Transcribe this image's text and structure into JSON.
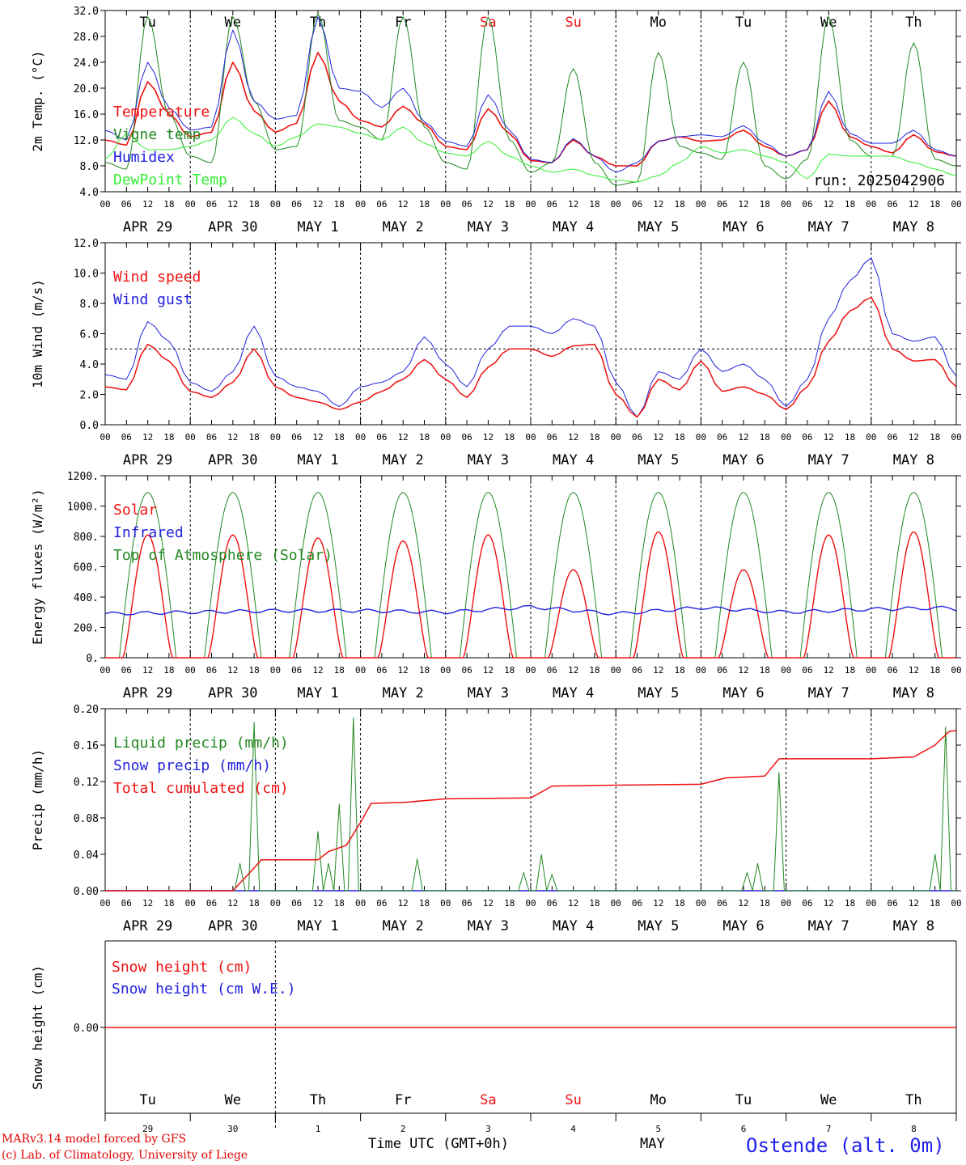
{
  "chart_data": [
    {
      "type": "line",
      "panel": "temperature",
      "ylabel": "2m Temp. (°C)",
      "ylim": [
        4.0,
        32.0
      ],
      "yticks": [
        "4.0",
        "8.0",
        "12.0",
        "16.0",
        "20.0",
        "24.0",
        "28.0",
        "32.0"
      ],
      "annotation": "run: 2025042906",
      "hours": [
        0,
        6,
        12,
        18,
        24,
        30,
        36,
        42,
        48,
        54,
        60,
        66,
        72,
        78,
        84,
        90,
        96,
        102,
        108,
        114,
        120,
        126,
        132,
        138,
        144,
        150,
        156,
        162,
        168,
        174,
        180,
        186,
        192,
        198,
        204,
        210,
        216,
        222,
        228,
        234,
        240
      ],
      "series": [
        {
          "name": "Temperature",
          "color": "#ee1111",
          "values": [
            12.0,
            11.2,
            21.0,
            16.0,
            12.5,
            13.2,
            24.0,
            16.5,
            13.2,
            14.6,
            25.5,
            18.0,
            15.0,
            14.0,
            17.2,
            14.5,
            11.0,
            10.5,
            16.8,
            13.0,
            8.8,
            8.5,
            12.0,
            9.5,
            8.0,
            8.0,
            11.8,
            12.5,
            11.8,
            12.0,
            13.5,
            11.0,
            9.5,
            10.5,
            18.0,
            12.5,
            11.0,
            10.0,
            12.8,
            10.2,
            9.5
          ]
        },
        {
          "name": "Vigne temp",
          "color": "#228822",
          "values": [
            8.5,
            7.5,
            31.0,
            16.0,
            9.5,
            8.5,
            31.0,
            18.0,
            10.5,
            11.0,
            31.5,
            15.0,
            14.0,
            12.0,
            31.0,
            14.0,
            8.5,
            7.5,
            31.0,
            12.0,
            7.0,
            8.5,
            23.0,
            8.5,
            5.0,
            5.5,
            25.5,
            11.0,
            10.0,
            9.0,
            24.0,
            8.0,
            6.0,
            9.0,
            31.0,
            12.0,
            9.5,
            9.5,
            27.0,
            9.0,
            8.0
          ]
        },
        {
          "name": "Humidex",
          "color": "#2222dd",
          "values": [
            13.5,
            12.0,
            24.0,
            17.0,
            13.5,
            14.0,
            29.0,
            18.0,
            15.2,
            15.8,
            31.0,
            20.0,
            19.5,
            17.0,
            20.0,
            14.8,
            11.8,
            11.0,
            19.0,
            13.5,
            9.0,
            8.5,
            12.2,
            9.5,
            7.0,
            8.5,
            11.8,
            12.5,
            12.8,
            12.5,
            14.2,
            11.5,
            9.5,
            10.5,
            19.5,
            13.0,
            11.5,
            11.5,
            13.5,
            10.5,
            9.5
          ]
        },
        {
          "name": "DewPoint Temp",
          "color": "#33ee33",
          "values": [
            9.0,
            13.0,
            10.5,
            10.5,
            11.0,
            12.0,
            15.5,
            13.0,
            11.0,
            12.5,
            14.5,
            14.0,
            13.0,
            12.0,
            14.0,
            11.5,
            10.0,
            9.5,
            11.8,
            9.5,
            8.0,
            7.0,
            7.5,
            6.5,
            5.8,
            5.5,
            6.5,
            8.5,
            11.0,
            10.0,
            10.5,
            9.5,
            8.5,
            6.0,
            9.8,
            9.5,
            9.5,
            9.5,
            8.5,
            7.5,
            6.5
          ]
        }
      ]
    },
    {
      "type": "line",
      "panel": "wind",
      "ylabel": "10m Wind (m/s)",
      "ylim": [
        0.0,
        12.0
      ],
      "yticks": [
        "0.0",
        "2.0",
        "4.0",
        "6.0",
        "8.0",
        "10.0",
        "12.0"
      ],
      "reference_line": 5.0,
      "hours": [
        0,
        6,
        12,
        18,
        24,
        30,
        36,
        42,
        48,
        54,
        60,
        66,
        72,
        78,
        84,
        90,
        96,
        102,
        108,
        114,
        120,
        126,
        132,
        138,
        144,
        150,
        156,
        162,
        168,
        174,
        180,
        186,
        192,
        198,
        204,
        210,
        216,
        222,
        228,
        234,
        240
      ],
      "series": [
        {
          "name": "Wind speed",
          "color": "#ee1111",
          "values": [
            2.5,
            2.3,
            5.3,
            4.2,
            2.2,
            1.8,
            2.8,
            5.0,
            2.5,
            1.8,
            1.5,
            1.0,
            1.5,
            2.2,
            3.0,
            4.3,
            3.0,
            1.8,
            3.8,
            5.0,
            5.0,
            4.5,
            5.2,
            5.3,
            2.0,
            0.5,
            3.0,
            2.3,
            4.2,
            2.2,
            2.5,
            2.0,
            1.0,
            2.5,
            5.5,
            7.5,
            8.4,
            5.0,
            4.2,
            4.3,
            2.5
          ]
        },
        {
          "name": "Wind gust",
          "color": "#2222dd",
          "values": [
            3.3,
            3.0,
            6.8,
            5.5,
            2.8,
            2.2,
            3.5,
            6.5,
            3.2,
            2.5,
            2.2,
            1.2,
            2.5,
            2.8,
            3.5,
            5.8,
            4.0,
            2.5,
            5.0,
            6.5,
            6.5,
            6.0,
            7.0,
            6.5,
            2.8,
            0.5,
            3.5,
            3.0,
            5.0,
            3.5,
            4.0,
            3.0,
            1.2,
            3.0,
            7.0,
            9.5,
            11.0,
            6.0,
            5.5,
            5.8,
            3.2
          ]
        }
      ]
    },
    {
      "type": "line",
      "panel": "energy",
      "ylabel": "Energy fluxes (W/m²)",
      "ylim": [
        0,
        1200
      ],
      "yticks": [
        "0.",
        "200.",
        "400.",
        "600.",
        "800.",
        "1000.",
        "1200."
      ],
      "series": [
        {
          "name": "Solar",
          "color": "#ee1111",
          "daily_peaks": [
            810,
            810,
            790,
            770,
            810,
            580,
            830,
            580,
            810,
            830
          ]
        },
        {
          "name": "Infrared",
          "color": "#2222dd",
          "baseline": [
            290,
            300,
            310,
            310,
            300,
            335,
            290,
            330,
            300,
            320,
            330
          ]
        },
        {
          "name": "Top of Atmosphere (Solar)",
          "color": "#228822",
          "daily_peak": 1090
        }
      ]
    },
    {
      "type": "line",
      "panel": "precip",
      "ylabel": "Precip (mm/h)",
      "ylim": [
        0.0,
        0.2
      ],
      "yticks": [
        "0.00",
        "0.04",
        "0.08",
        "0.12",
        "0.16",
        "0.20"
      ],
      "series": [
        {
          "name": "Liquid precip (mm/h)",
          "color": "#228822",
          "events": [
            [
              38,
              0.03
            ],
            [
              42,
              0.185
            ],
            [
              60,
              0.065
            ],
            [
              63,
              0.03
            ],
            [
              66,
              0.095
            ],
            [
              70,
              0.19
            ],
            [
              88,
              0.035
            ],
            [
              118,
              0.02
            ],
            [
              123,
              0.04
            ],
            [
              126,
              0.018
            ],
            [
              181,
              0.02
            ],
            [
              184,
              0.03
            ],
            [
              190,
              0.13
            ],
            [
              234,
              0.04
            ],
            [
              237,
              0.18
            ]
          ]
        },
        {
          "name": "Snow precip (mm/h)",
          "color": "#2222dd",
          "events": []
        },
        {
          "name": "Total cumulated (cm)",
          "color": "#ee1111",
          "steps": [
            [
              0,
              0.0
            ],
            [
              36,
              0.0
            ],
            [
              42,
              0.025
            ],
            [
              44,
              0.034
            ],
            [
              60,
              0.034
            ],
            [
              63,
              0.043
            ],
            [
              68,
              0.05
            ],
            [
              72,
              0.075
            ],
            [
              75,
              0.096
            ],
            [
              84,
              0.097
            ],
            [
              96,
              0.101
            ],
            [
              120,
              0.102
            ],
            [
              126,
              0.115
            ],
            [
              144,
              0.116
            ],
            [
              168,
              0.117
            ],
            [
              175,
              0.124
            ],
            [
              186,
              0.126
            ],
            [
              190,
              0.145
            ],
            [
              216,
              0.145
            ],
            [
              228,
              0.147
            ],
            [
              234,
              0.16
            ],
            [
              238,
              0.175
            ],
            [
              240,
              0.176
            ]
          ]
        }
      ]
    },
    {
      "type": "line",
      "panel": "snow",
      "ylabel": "Snow height (cm)",
      "ytick": "0.00",
      "series": [
        {
          "name": "Snow height (cm)",
          "color": "#ee1111",
          "values": [
            0.0,
            0.0
          ]
        },
        {
          "name": "Snow height (cm W.E.)",
          "color": "#2222dd",
          "values": [
            0.0,
            0.0
          ]
        }
      ]
    }
  ],
  "hour_labels": [
    "00",
    "06",
    "12",
    "18"
  ],
  "dates": [
    "APR 29",
    "APR 30",
    "MAY  1",
    "MAY  2",
    "MAY  3",
    "MAY  4",
    "MAY  5",
    "MAY  6",
    "MAY  7",
    "MAY  8"
  ],
  "days": [
    {
      "label": "Tu",
      "color": "#000000"
    },
    {
      "label": "We",
      "color": "#000000"
    },
    {
      "label": "Th",
      "color": "#000000"
    },
    {
      "label": "Fr",
      "color": "#000000"
    },
    {
      "label": "Sa",
      "color": "#ee1111"
    },
    {
      "label": "Su",
      "color": "#ee1111"
    },
    {
      "label": "Mo",
      "color": "#000000"
    },
    {
      "label": "Tu",
      "color": "#000000"
    },
    {
      "label": "We",
      "color": "#000000"
    },
    {
      "label": "Th",
      "color": "#000000"
    }
  ],
  "day_numbers": [
    "29",
    "30",
    "1",
    "2",
    "3",
    "4",
    "5",
    "6",
    "7",
    "8"
  ],
  "footer": {
    "model": "MARv3.14 model forced by GFS",
    "copyright": "(c) Lab. of Climatology, University of Liege",
    "time_axis": "Time UTC (GMT+0h)",
    "month": "MAY",
    "station": "Ostende (alt. 0m)"
  }
}
